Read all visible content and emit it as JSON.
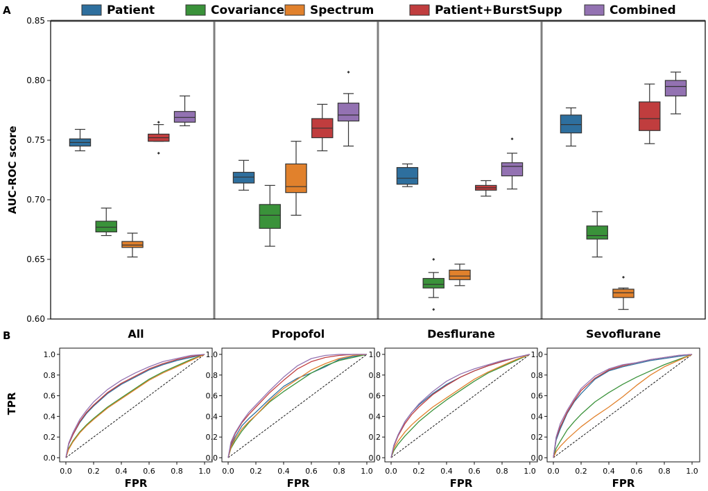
{
  "panel_labels": {
    "a": "A",
    "b": "B"
  },
  "legend": {
    "items": [
      {
        "label": "Patient",
        "color": "#2e6f9e"
      },
      {
        "label": "Covariance",
        "color": "#3a923a"
      },
      {
        "label": "Spectrum",
        "color": "#e1812c"
      },
      {
        "label": "Patient+BurstSupp",
        "color": "#c03d3e"
      },
      {
        "label": "Combined",
        "color": "#9372b2"
      }
    ]
  },
  "chart_data": [
    {
      "type": "boxplot",
      "title": "",
      "ylabel": "AUC-ROC score",
      "ylim": [
        0.6,
        0.85
      ],
      "yticks": [
        "0.60",
        "0.65",
        "0.70",
        "0.75",
        "0.80",
        "0.85"
      ],
      "ytick_values": [
        0.6,
        0.65,
        0.7,
        0.75,
        0.8,
        0.85
      ],
      "groups": [
        "All",
        "Propofol",
        "Desflurane",
        "Sevoflurane"
      ],
      "series": [
        {
          "name": "Patient",
          "boxes": [
            {
              "whislo": 0.741,
              "q1": 0.745,
              "med": 0.748,
              "q3": 0.751,
              "whishi": 0.759,
              "fliers": []
            },
            {
              "whislo": 0.708,
              "q1": 0.714,
              "med": 0.719,
              "q3": 0.723,
              "whishi": 0.733,
              "fliers": []
            },
            {
              "whislo": 0.711,
              "q1": 0.713,
              "med": 0.718,
              "q3": 0.727,
              "whishi": 0.73,
              "fliers": []
            },
            {
              "whislo": 0.745,
              "q1": 0.756,
              "med": 0.763,
              "q3": 0.771,
              "whishi": 0.777,
              "fliers": []
            }
          ]
        },
        {
          "name": "Covariance",
          "boxes": [
            {
              "whislo": 0.67,
              "q1": 0.673,
              "med": 0.677,
              "q3": 0.682,
              "whishi": 0.693,
              "fliers": []
            },
            {
              "whislo": 0.661,
              "q1": 0.676,
              "med": 0.687,
              "q3": 0.696,
              "whishi": 0.712,
              "fliers": []
            },
            {
              "whislo": 0.618,
              "q1": 0.626,
              "med": 0.629,
              "q3": 0.634,
              "whishi": 0.639,
              "fliers": [
                0.65,
                0.608
              ]
            },
            {
              "whislo": 0.652,
              "q1": 0.667,
              "med": 0.67,
              "q3": 0.678,
              "whishi": 0.69,
              "fliers": []
            }
          ]
        },
        {
          "name": "Spectrum",
          "boxes": [
            {
              "whislo": 0.652,
              "q1": 0.66,
              "med": 0.662,
              "q3": 0.665,
              "whishi": 0.672,
              "fliers": []
            },
            {
              "whislo": 0.687,
              "q1": 0.706,
              "med": 0.711,
              "q3": 0.73,
              "whishi": 0.749,
              "fliers": []
            },
            {
              "whislo": 0.628,
              "q1": 0.633,
              "med": 0.636,
              "q3": 0.641,
              "whishi": 0.646,
              "fliers": []
            },
            {
              "whislo": 0.608,
              "q1": 0.618,
              "med": 0.622,
              "q3": 0.625,
              "whishi": 0.626,
              "fliers": [
                0.635
              ]
            }
          ]
        },
        {
          "name": "Patient+BurstSupp",
          "boxes": [
            {
              "whislo": 0.749,
              "q1": 0.749,
              "med": 0.752,
              "q3": 0.755,
              "whishi": 0.763,
              "fliers": [
                0.765,
                0.739
              ]
            },
            {
              "whislo": 0.741,
              "q1": 0.752,
              "med": 0.76,
              "q3": 0.768,
              "whishi": 0.78,
              "fliers": []
            },
            {
              "whislo": 0.703,
              "q1": 0.708,
              "med": 0.71,
              "q3": 0.712,
              "whishi": 0.716,
              "fliers": []
            },
            {
              "whislo": 0.747,
              "q1": 0.758,
              "med": 0.768,
              "q3": 0.782,
              "whishi": 0.797,
              "fliers": []
            }
          ]
        },
        {
          "name": "Combined",
          "boxes": [
            {
              "whislo": 0.762,
              "q1": 0.765,
              "med": 0.769,
              "q3": 0.774,
              "whishi": 0.787,
              "fliers": []
            },
            {
              "whislo": 0.745,
              "q1": 0.766,
              "med": 0.771,
              "q3": 0.781,
              "whishi": 0.789,
              "fliers": [
                0.807
              ]
            },
            {
              "whislo": 0.709,
              "q1": 0.72,
              "med": 0.728,
              "q3": 0.731,
              "whishi": 0.739,
              "fliers": [
                0.751
              ]
            },
            {
              "whislo": 0.772,
              "q1": 0.787,
              "med": 0.795,
              "q3": 0.8,
              "whishi": 0.807,
              "fliers": []
            }
          ]
        }
      ]
    },
    {
      "type": "line",
      "subtype": "roc",
      "xlabel": "FPR",
      "ylabel": "TPR",
      "xlim": [
        0,
        1
      ],
      "ylim": [
        0,
        1
      ],
      "xticks": [
        "0.0",
        "0.2",
        "0.4",
        "0.6",
        "0.8",
        "1.0"
      ],
      "yticks": [
        "0.0",
        "0.2",
        "0.4",
        "0.6",
        "0.8",
        "1.0"
      ],
      "tick_values": [
        0,
        0.2,
        0.4,
        0.6,
        0.8,
        1.0
      ],
      "chance_line": [
        [
          0,
          0
        ],
        [
          1,
          1
        ]
      ],
      "fpr": [
        0,
        0.02,
        0.05,
        0.1,
        0.15,
        0.2,
        0.3,
        0.4,
        0.5,
        0.6,
        0.7,
        0.8,
        0.9,
        1.0
      ],
      "panels": [
        {
          "title": "All",
          "series": [
            {
              "name": "Patient",
              "tpr": [
                0,
                0.13,
                0.22,
                0.34,
                0.43,
                0.5,
                0.62,
                0.71,
                0.78,
                0.85,
                0.9,
                0.94,
                0.97,
                1.0
              ]
            },
            {
              "name": "Covariance",
              "tpr": [
                0,
                0.09,
                0.16,
                0.25,
                0.32,
                0.38,
                0.49,
                0.58,
                0.67,
                0.76,
                0.83,
                0.89,
                0.95,
                1.0
              ]
            },
            {
              "name": "Spectrum",
              "tpr": [
                0,
                0.08,
                0.15,
                0.24,
                0.31,
                0.37,
                0.48,
                0.57,
                0.66,
                0.75,
                0.82,
                0.88,
                0.94,
                1.0
              ]
            },
            {
              "name": "Patient+BurstSupp",
              "tpr": [
                0,
                0.13,
                0.22,
                0.35,
                0.44,
                0.51,
                0.63,
                0.72,
                0.79,
                0.86,
                0.91,
                0.95,
                0.98,
                1.0
              ]
            },
            {
              "name": "Combined",
              "tpr": [
                0,
                0.14,
                0.24,
                0.37,
                0.46,
                0.54,
                0.66,
                0.75,
                0.82,
                0.88,
                0.93,
                0.96,
                0.99,
                1.0
              ]
            }
          ]
        },
        {
          "title": "Propofol",
          "series": [
            {
              "name": "Patient",
              "tpr": [
                0,
                0.11,
                0.2,
                0.31,
                0.38,
                0.44,
                0.57,
                0.69,
                0.77,
                0.82,
                0.88,
                0.95,
                0.98,
                1.0
              ]
            },
            {
              "name": "Covariance",
              "tpr": [
                0,
                0.09,
                0.16,
                0.26,
                0.34,
                0.41,
                0.54,
                0.64,
                0.73,
                0.82,
                0.89,
                0.94,
                0.97,
                1.0
              ]
            },
            {
              "name": "Spectrum",
              "tpr": [
                0,
                0.1,
                0.18,
                0.28,
                0.35,
                0.41,
                0.55,
                0.67,
                0.76,
                0.85,
                0.91,
                0.96,
                0.99,
                1.0
              ]
            },
            {
              "name": "Patient+BurstSupp",
              "tpr": [
                0,
                0.13,
                0.23,
                0.34,
                0.42,
                0.49,
                0.63,
                0.75,
                0.86,
                0.93,
                0.97,
                0.99,
                1.0,
                1.0
              ]
            },
            {
              "name": "Combined",
              "tpr": [
                0,
                0.15,
                0.24,
                0.35,
                0.44,
                0.51,
                0.65,
                0.78,
                0.89,
                0.96,
                0.99,
                1.0,
                1.0,
                1.0
              ]
            }
          ]
        },
        {
          "title": "Desflurane",
          "series": [
            {
              "name": "Patient",
              "tpr": [
                0,
                0.12,
                0.22,
                0.35,
                0.44,
                0.51,
                0.62,
                0.71,
                0.78,
                0.84,
                0.89,
                0.93,
                0.97,
                1.0
              ]
            },
            {
              "name": "Covariance",
              "tpr": [
                0,
                0.07,
                0.13,
                0.21,
                0.28,
                0.35,
                0.46,
                0.56,
                0.65,
                0.74,
                0.82,
                0.88,
                0.94,
                1.0
              ]
            },
            {
              "name": "Spectrum",
              "tpr": [
                0,
                0.09,
                0.16,
                0.25,
                0.32,
                0.38,
                0.49,
                0.58,
                0.67,
                0.76,
                0.83,
                0.89,
                0.95,
                1.0
              ]
            },
            {
              "name": "Patient+BurstSupp",
              "tpr": [
                0,
                0.11,
                0.21,
                0.33,
                0.42,
                0.49,
                0.61,
                0.7,
                0.78,
                0.84,
                0.89,
                0.93,
                0.97,
                1.0
              ]
            },
            {
              "name": "Combined",
              "tpr": [
                0,
                0.12,
                0.22,
                0.35,
                0.44,
                0.52,
                0.64,
                0.74,
                0.81,
                0.86,
                0.9,
                0.94,
                0.97,
                1.0
              ]
            }
          ]
        },
        {
          "title": "Sevoflurane",
          "series": [
            {
              "name": "Patient",
              "tpr": [
                0,
                0.17,
                0.28,
                0.43,
                0.54,
                0.62,
                0.76,
                0.84,
                0.88,
                0.91,
                0.94,
                0.96,
                0.98,
                1.0
              ]
            },
            {
              "name": "Covariance",
              "tpr": [
                0,
                0.09,
                0.16,
                0.27,
                0.35,
                0.42,
                0.54,
                0.63,
                0.71,
                0.78,
                0.84,
                0.9,
                0.95,
                1.0
              ]
            },
            {
              "name": "Spectrum",
              "tpr": [
                0,
                0.06,
                0.11,
                0.18,
                0.24,
                0.3,
                0.4,
                0.49,
                0.59,
                0.7,
                0.8,
                0.88,
                0.94,
                1.0
              ]
            },
            {
              "name": "Patient+BurstSupp",
              "tpr": [
                0,
                0.19,
                0.3,
                0.44,
                0.55,
                0.65,
                0.77,
                0.85,
                0.89,
                0.92,
                0.95,
                0.97,
                0.99,
                1.0
              ]
            },
            {
              "name": "Combined",
              "tpr": [
                0,
                0.2,
                0.33,
                0.46,
                0.57,
                0.67,
                0.79,
                0.86,
                0.9,
                0.92,
                0.95,
                0.97,
                0.99,
                1.0
              ]
            }
          ]
        }
      ]
    }
  ]
}
